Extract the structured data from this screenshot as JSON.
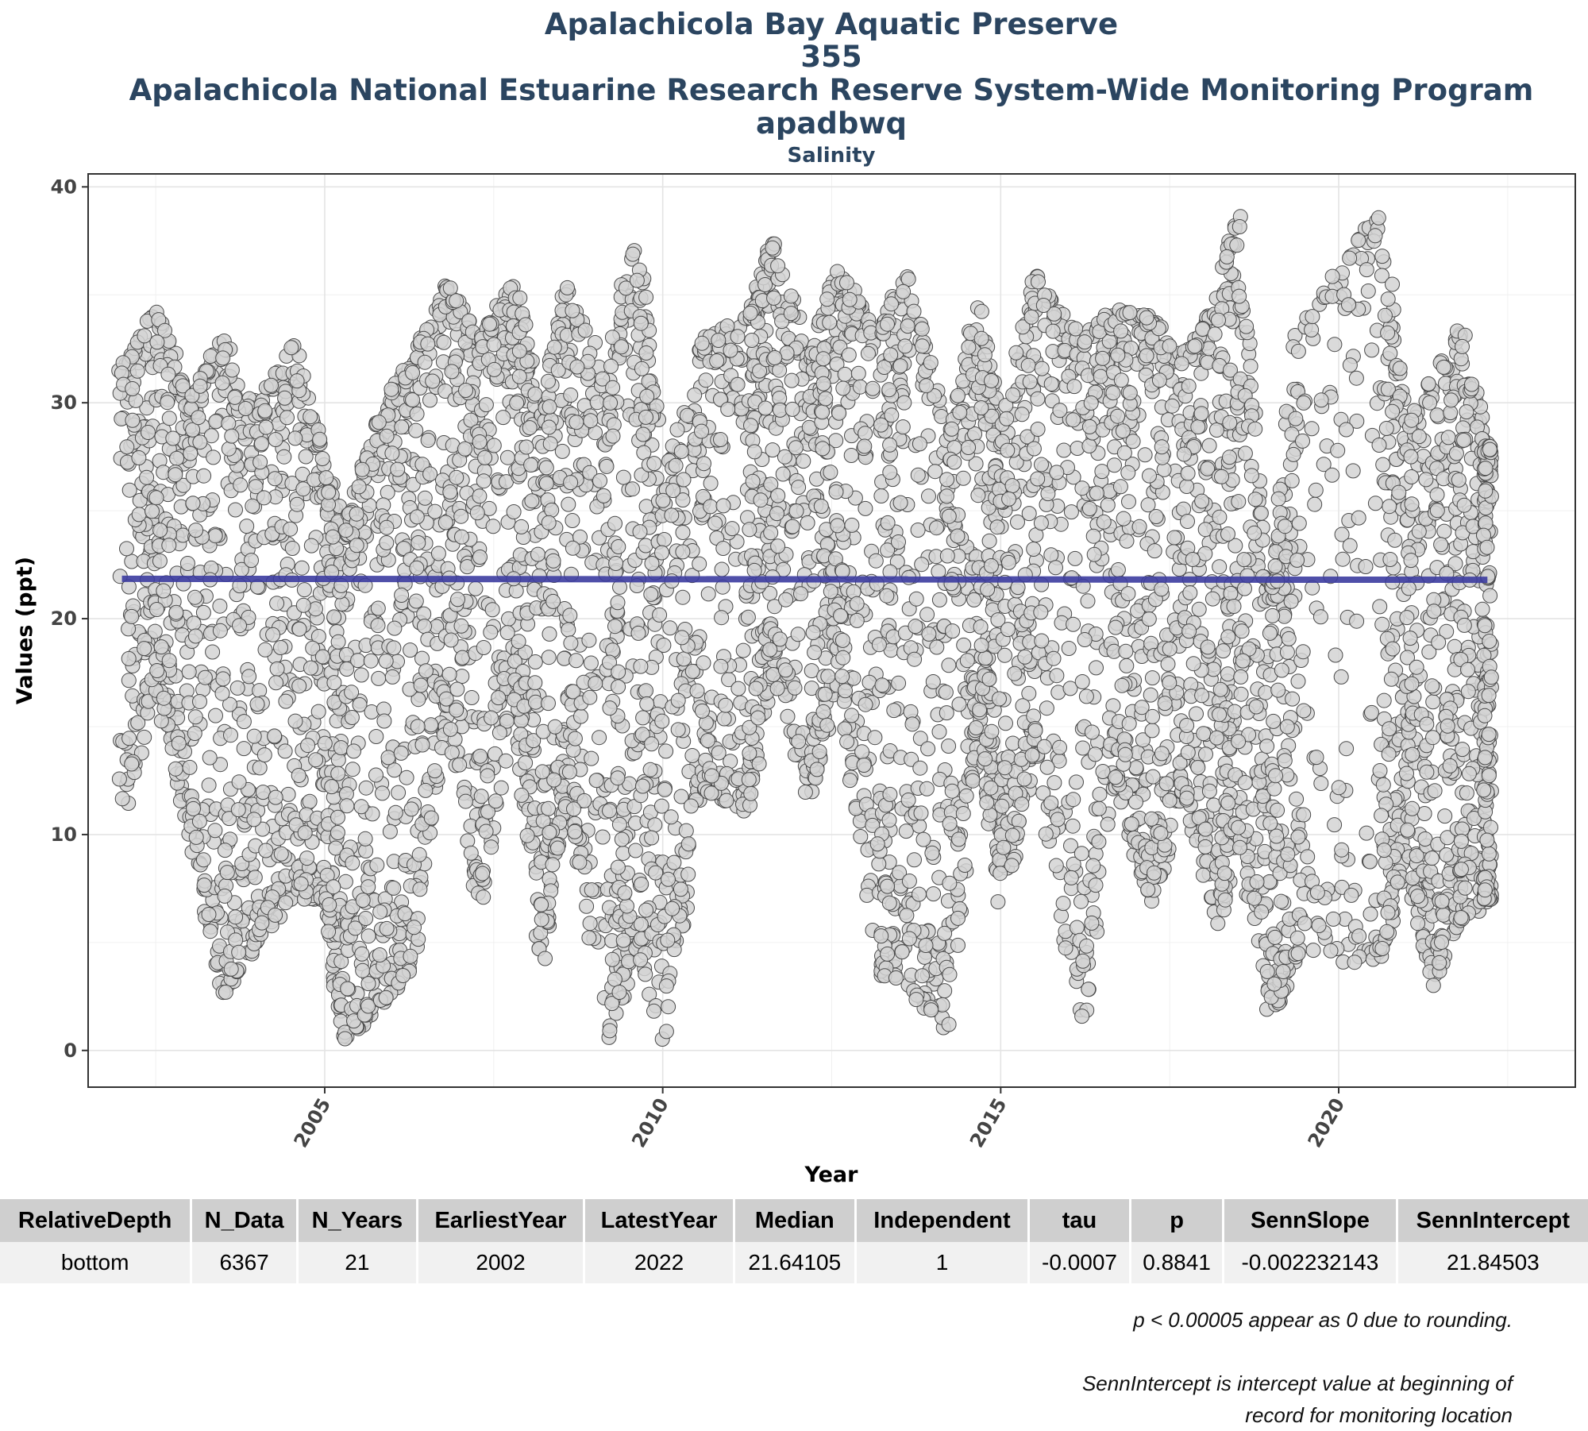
{
  "chart_data": {
    "type": "scatter",
    "title_lines": [
      "Apalachicola Bay Aquatic Preserve",
      "355",
      "Apalachicola National Estuarine Research Reserve System-Wide Monitoring Program",
      "apadbwq"
    ],
    "subtitle": "Salinity",
    "xlabel": "Year",
    "ylabel": "Values (ppt)",
    "xlim": [
      2001.5,
      2023.5
    ],
    "ylim": [
      -1.7,
      40.6
    ],
    "x_ticks": [
      2005,
      2010,
      2015,
      2020
    ],
    "y_ticks": [
      0,
      10,
      20,
      30,
      40
    ],
    "grid": true,
    "legend": "none",
    "point_fill": "#d3d3d3",
    "point_stroke": "#4a4a4a",
    "trend_color": "#3c3ca0",
    "trend_line": {
      "x": [
        2002.0,
        2022.2
      ],
      "y": [
        21.84503,
        21.8
      ]
    },
    "series": [
      {
        "y_envelope": [
          {
            "x": 2002.0,
            "low": 10.5,
            "high": 31.5
          },
          {
            "x": 2002.5,
            "low": 17.0,
            "high": 34.5
          },
          {
            "x": 2003.0,
            "low": 10.5,
            "high": 30.0
          },
          {
            "x": 2003.5,
            "low": 2.5,
            "high": 33.0
          },
          {
            "x": 2004.0,
            "low": 5.0,
            "high": 29.5
          },
          {
            "x": 2004.5,
            "low": 7.0,
            "high": 33.0
          },
          {
            "x": 2005.0,
            "low": 7.0,
            "high": 27.0
          },
          {
            "x": 2005.3,
            "low": 0.2,
            "high": 24.0
          },
          {
            "x": 2005.8,
            "low": 2.0,
            "high": 29.5
          },
          {
            "x": 2006.3,
            "low": 3.8,
            "high": 32.0
          },
          {
            "x": 2006.8,
            "low": 16.0,
            "high": 35.5
          },
          {
            "x": 2007.3,
            "low": 6.7,
            "high": 33.0
          },
          {
            "x": 2007.8,
            "low": 17.0,
            "high": 35.5
          },
          {
            "x": 2008.2,
            "low": 4.0,
            "high": 29.0
          },
          {
            "x": 2008.6,
            "low": 12.0,
            "high": 35.5
          },
          {
            "x": 2009.2,
            "low": 0.3,
            "high": 31.0
          },
          {
            "x": 2009.6,
            "low": 5.0,
            "high": 38.5
          },
          {
            "x": 2010.0,
            "low": 0.4,
            "high": 26.0
          },
          {
            "x": 2010.6,
            "low": 12.0,
            "high": 33.0
          },
          {
            "x": 2011.3,
            "low": 11.0,
            "high": 34.0
          },
          {
            "x": 2011.6,
            "low": 18.0,
            "high": 37.5
          },
          {
            "x": 2012.2,
            "low": 11.5,
            "high": 32.0
          },
          {
            "x": 2012.6,
            "low": 17.5,
            "high": 36.3
          },
          {
            "x": 2013.2,
            "low": 3.5,
            "high": 33.0
          },
          {
            "x": 2013.6,
            "low": 3.0,
            "high": 36.0
          },
          {
            "x": 2014.2,
            "low": 1.0,
            "high": 29.0
          },
          {
            "x": 2014.7,
            "low": 16.0,
            "high": 35.0
          },
          {
            "x": 2015.0,
            "low": 6.5,
            "high": 28.0
          },
          {
            "x": 2015.5,
            "low": 14.0,
            "high": 36.0
          },
          {
            "x": 2016.2,
            "low": 1.3,
            "high": 33.0
          },
          {
            "x": 2016.7,
            "low": 12.5,
            "high": 34.3
          },
          {
            "x": 2017.2,
            "low": 6.7,
            "high": 34.0
          },
          {
            "x": 2017.7,
            "low": 12.0,
            "high": 32.0
          },
          {
            "x": 2018.2,
            "low": 5.5,
            "high": 34.5
          },
          {
            "x": 2018.5,
            "low": 10.5,
            "high": 38.8
          },
          {
            "x": 2019.0,
            "low": 1.6,
            "high": 20.5
          },
          {
            "x": 2019.4,
            "low": 4.5,
            "high": 33.5
          },
          {
            "x": 2020.6,
            "low": 3.8,
            "high": 38.8
          },
          {
            "x": 2021.0,
            "low": 9.0,
            "high": 29.0
          },
          {
            "x": 2021.4,
            "low": 3.0,
            "high": 31.0
          },
          {
            "x": 2021.8,
            "low": 5.8,
            "high": 33.5
          },
          {
            "x": 2022.2,
            "low": 7.0,
            "high": 28.0
          }
        ]
      }
    ]
  },
  "stats_table": {
    "headers": [
      "RelativeDepth",
      "N_Data",
      "N_Years",
      "EarliestYear",
      "LatestYear",
      "Median",
      "Independent",
      "tau",
      "p",
      "SennSlope",
      "SennIntercept"
    ],
    "row": [
      "bottom",
      "6367",
      "21",
      "2002",
      "2022",
      "21.64105",
      "1",
      "-0.0007",
      "0.8841",
      "-0.002232143",
      "21.84503"
    ]
  },
  "notes": {
    "rounding": "p < 0.00005 appear as 0 due to rounding.",
    "intercept_line1": "SennIntercept is intercept value at beginning of",
    "intercept_line2": "record for monitoring location"
  }
}
